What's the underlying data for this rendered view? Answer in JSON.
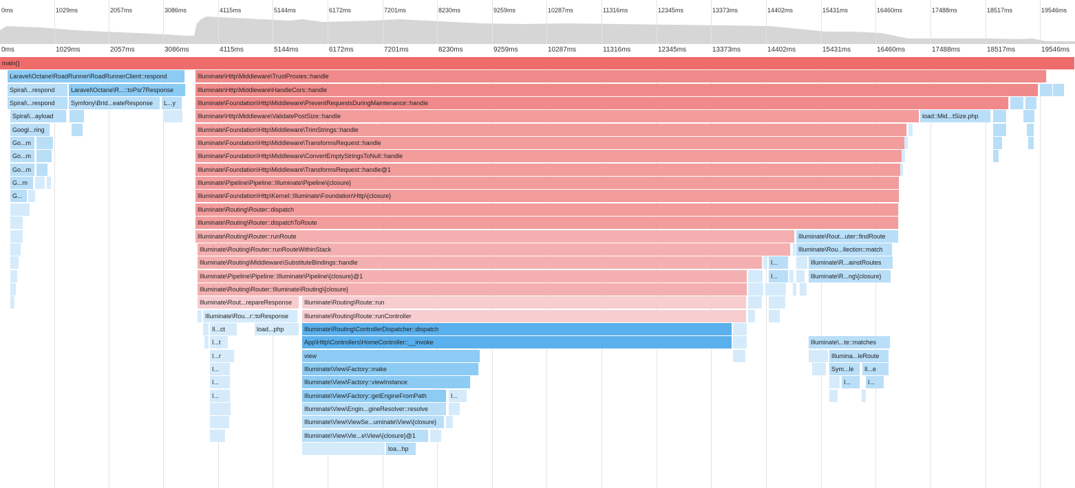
{
  "timeline": {
    "ticks": [
      "0ms",
      "1029ms",
      "2057ms",
      "3086ms",
      "4115ms",
      "5144ms",
      "6172ms",
      "7201ms",
      "8230ms",
      "9259ms",
      "10287ms",
      "11316ms",
      "12345ms",
      "13373ms",
      "14402ms",
      "15431ms",
      "16460ms",
      "17488ms",
      "18517ms",
      "19546ms"
    ],
    "tick_step_ms": 1028.7,
    "total_ms": 19546
  },
  "colors": {
    "red_1": "#ef6c6c",
    "red_2": "#f08a8a",
    "red_3": "#f29c9c",
    "red_4": "#f4b0b0",
    "red_5": "#f7cdd0",
    "blue_dark": "#5ab0ec",
    "blue_mid": "#8ccbf4",
    "blue_light": "#b9def8",
    "blue_pale": "#d5ebfb",
    "overview_fill": "#d6d6d6"
  },
  "frames": [
    {
      "label": "main()",
      "color": "red_1"
    },
    {
      "label": "Laravel\\Octane\\RoadRunner\\RoadRunnerClient::respond",
      "color": "blue_mid"
    },
    {
      "label": "Illuminate\\Http\\Middleware\\TrustProxies::handle",
      "color": "red_2"
    },
    {
      "label": "Spiral\\...respond",
      "color": "blue_light"
    },
    {
      "label": "Laravel\\Octane\\R...::toPsr7Response",
      "color": "blue_mid"
    },
    {
      "label": "Illuminate\\Http\\Middleware\\HandleCors::handle",
      "color": "red_2"
    },
    {
      "label": "Spiral\\...respond",
      "color": "blue_light"
    },
    {
      "label": "Symfony\\Brid...eateResponse",
      "color": "blue_light"
    },
    {
      "label": "L...y",
      "color": "blue_light"
    },
    {
      "label": "Illuminate\\Foundation\\Http\\Middleware\\PreventRequestsDuringMaintenance::handle",
      "color": "red_2"
    },
    {
      "label": "Spiral\\...ayload",
      "color": "blue_light"
    },
    {
      "label": "Illuminate\\Http\\Middleware\\ValidatePostSize::handle",
      "color": "red_3"
    },
    {
      "label": "load::Mid...tSize.php",
      "color": "blue_light"
    },
    {
      "label": "Googl...ring",
      "color": "blue_light"
    },
    {
      "label": "Illuminate\\Foundation\\Http\\Middleware\\TrimStrings::handle",
      "color": "red_3"
    },
    {
      "label": "Go...m",
      "color": "blue_light"
    },
    {
      "label": "Illuminate\\Foundation\\Http\\Middleware\\TransformsRequest::handle",
      "color": "red_3"
    },
    {
      "label": "Go...m",
      "color": "blue_light"
    },
    {
      "label": "Illuminate\\Foundation\\Http\\Middleware\\ConvertEmptyStringsToNull::handle",
      "color": "red_3"
    },
    {
      "label": "Go...m",
      "color": "blue_light"
    },
    {
      "label": "Illuminate\\Foundation\\Http\\Middleware\\TransformsRequest::handle@1",
      "color": "red_3"
    },
    {
      "label": "G...m",
      "color": "blue_light"
    },
    {
      "label": "Illuminate\\Pipeline\\Pipeline::Illuminate\\Pipeline\\{closure}",
      "color": "red_3"
    },
    {
      "label": "G...",
      "color": "blue_light"
    },
    {
      "label": "Illuminate\\Foundation\\Http\\Kernel::Illuminate\\Foundation\\Http\\{closure}",
      "color": "red_3"
    },
    {
      "label": "Illuminate\\Routing\\Router::dispatch",
      "color": "red_3"
    },
    {
      "label": "Illuminate\\Routing\\Router::dispatchToRoute",
      "color": "red_3"
    },
    {
      "label": "Illuminate\\Routing\\Router::runRoute",
      "color": "red_4"
    },
    {
      "label": "Illuminate\\Rout...uter::findRoute",
      "color": "blue_light"
    },
    {
      "label": "Illuminate\\Routing\\Router::runRouteWithinStack",
      "color": "red_4"
    },
    {
      "label": "Illuminate\\Rou...llection::match",
      "color": "blue_light"
    },
    {
      "label": "Illuminate\\Routing\\Middleware\\SubstituteBindings::handle",
      "color": "red_4"
    },
    {
      "label": "I...",
      "color": "blue_light"
    },
    {
      "label": "Illuminate\\R...ainstRoutes",
      "color": "blue_light"
    },
    {
      "label": "Illuminate\\Pipeline\\Pipeline::Illuminate\\Pipeline\\{closure}@1",
      "color": "red_4"
    },
    {
      "label": "I...",
      "color": "blue_light"
    },
    {
      "label": "Illuminate\\R...ng\\{closure}",
      "color": "blue_light"
    },
    {
      "label": "Illuminate\\Routing\\Router::Illuminate\\Routing\\{closure}",
      "color": "red_4"
    },
    {
      "label": "Illuminate\\Rout...repareResponse",
      "color": "red_5"
    },
    {
      "label": "Illuminate\\Routing\\Route::run",
      "color": "red_5"
    },
    {
      "label": "Illuminate\\Rou...r::toResponse",
      "color": "blue_pale"
    },
    {
      "label": "Illuminate\\Routing\\Route::runController",
      "color": "red_5"
    },
    {
      "label": "Il...ct",
      "color": "blue_pale"
    },
    {
      "label": "load...php",
      "color": "blue_pale"
    },
    {
      "label": "Illuminate\\Routing\\ControllerDispatcher::dispatch",
      "color": "blue_dark"
    },
    {
      "label": "I...t",
      "color": "blue_pale"
    },
    {
      "label": "App\\Http\\Controllers\\HomeController::__invoke",
      "color": "blue_dark"
    },
    {
      "label": "Illuminate\\...te::matches",
      "color": "blue_light"
    },
    {
      "label": "I...r",
      "color": "blue_pale"
    },
    {
      "label": "view",
      "color": "blue_mid"
    },
    {
      "label": "Illumina...leRoute",
      "color": "blue_light"
    },
    {
      "label": "I...",
      "color": "blue_pale"
    },
    {
      "label": "Illuminate\\View\\Factory::make",
      "color": "blue_mid"
    },
    {
      "label": "Sym...le",
      "color": "blue_light"
    },
    {
      "label": "Il...e",
      "color": "blue_light"
    },
    {
      "label": "I...",
      "color": "blue_pale"
    },
    {
      "label": "Illuminate\\View\\Factory::viewInstance",
      "color": "blue_mid"
    },
    {
      "label": "I...",
      "color": "blue_light"
    },
    {
      "label": "I...",
      "color": "blue_light"
    },
    {
      "label": "I...",
      "color": "blue_pale"
    },
    {
      "label": "Illuminate\\View\\Factory::getEngineFromPath",
      "color": "blue_mid"
    },
    {
      "label": "I...",
      "color": "blue_pale"
    },
    {
      "label": "Illuminate\\View\\Engin...gineResolver::resolve",
      "color": "blue_light"
    },
    {
      "label": "Illuminate\\View\\ViewSe...uminate\\View\\{closure}",
      "color": "blue_light"
    },
    {
      "label": "Illuminate\\View\\Vie...e\\View\\{closure}@1",
      "color": "blue_light"
    },
    {
      "label": "loa...hp",
      "color": "blue_light"
    }
  ]
}
